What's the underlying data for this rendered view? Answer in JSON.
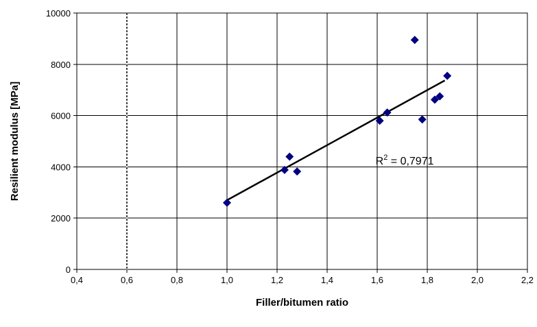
{
  "chart_data": {
    "type": "scatter",
    "xlabel": "Filler/bitumen ratio",
    "ylabel": "Resilient modulus [MPa]",
    "xlim": [
      0.4,
      2.2
    ],
    "ylim": [
      0,
      10000
    ],
    "x_ticks": [
      0.4,
      0.6,
      0.8,
      1.0,
      1.2,
      1.4,
      1.6,
      1.8,
      2.0,
      2.2
    ],
    "x_tick_labels": [
      "0,4",
      "0,6",
      "0,8",
      "1,0",
      "1,2",
      "1,4",
      "1,6",
      "1,8",
      "2,0",
      "2,2"
    ],
    "y_ticks": [
      0,
      2000,
      4000,
      6000,
      8000,
      10000
    ],
    "y_tick_labels": [
      "0",
      "2000",
      "4000",
      "6000",
      "8000",
      "10000"
    ],
    "grid": true,
    "marker_color": "#000080",
    "points": [
      {
        "x": 1.0,
        "y": 2600
      },
      {
        "x": 1.23,
        "y": 3880
      },
      {
        "x": 1.25,
        "y": 4400
      },
      {
        "x": 1.28,
        "y": 3820
      },
      {
        "x": 1.61,
        "y": 5800
      },
      {
        "x": 1.64,
        "y": 6120
      },
      {
        "x": 1.75,
        "y": 8950
      },
      {
        "x": 1.78,
        "y": 5850
      },
      {
        "x": 1.83,
        "y": 6620
      },
      {
        "x": 1.85,
        "y": 6750
      },
      {
        "x": 1.88,
        "y": 7550
      }
    ],
    "trendline": {
      "x1": 1.0,
      "y1": 2700,
      "x2": 1.87,
      "y2": 7370
    },
    "reference_line": {
      "x": 0.6,
      "style": "dashed"
    },
    "annotation": {
      "base": "R",
      "sup": "2",
      "text": " = 0,7971",
      "x": 1.61,
      "y": 4150
    }
  }
}
